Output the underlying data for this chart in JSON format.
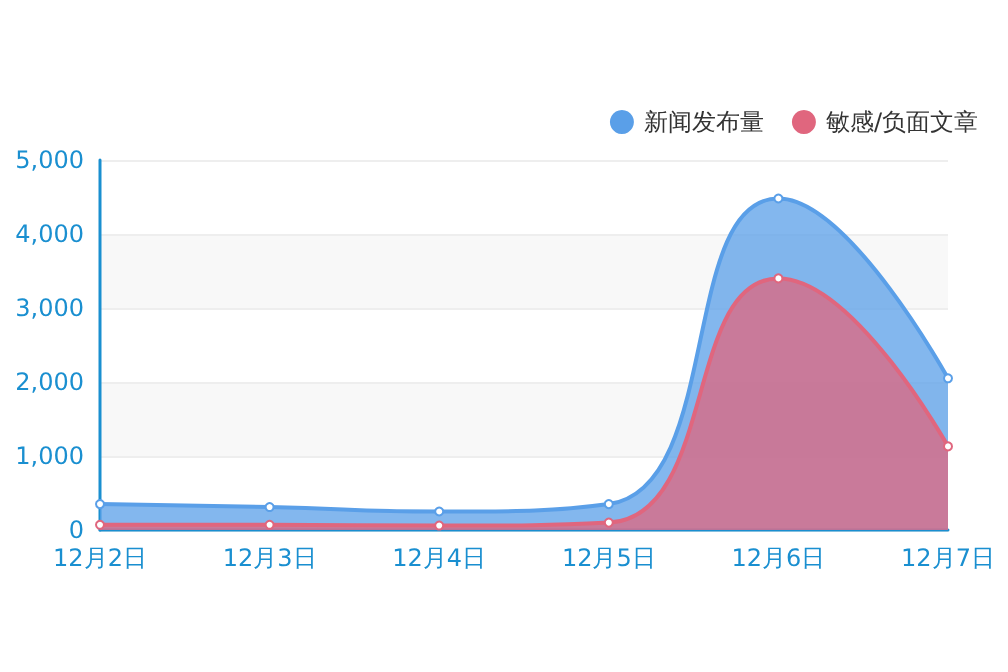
{
  "chart_data": {
    "type": "area",
    "categories": [
      "12月2日",
      "12月3日",
      "12月4日",
      "12月5日",
      "12月6日",
      "12月7日"
    ],
    "series": [
      {
        "name": "新闻发布量",
        "color": "#5a9fe8",
        "values": [
          350,
          310,
          250,
          350,
          4480,
          2050
        ]
      },
      {
        "name": "敏感/负面文章",
        "color": "#e0667e",
        "values": [
          70,
          70,
          60,
          100,
          3400,
          1130
        ]
      }
    ],
    "ylim": [
      0,
      5000
    ],
    "yticks": [
      0,
      {
        "value": 1000,
        "label": "1,000"
      },
      {
        "value": 2000,
        "label": "2,000"
      },
      {
        "value": 3000,
        "label": "3,000"
      },
      {
        "value": 4000,
        "label": "4,000"
      },
      {
        "value": 5000,
        "label": "5,000"
      }
    ],
    "grid": "y",
    "legend": "top right",
    "marker": "circle"
  }
}
